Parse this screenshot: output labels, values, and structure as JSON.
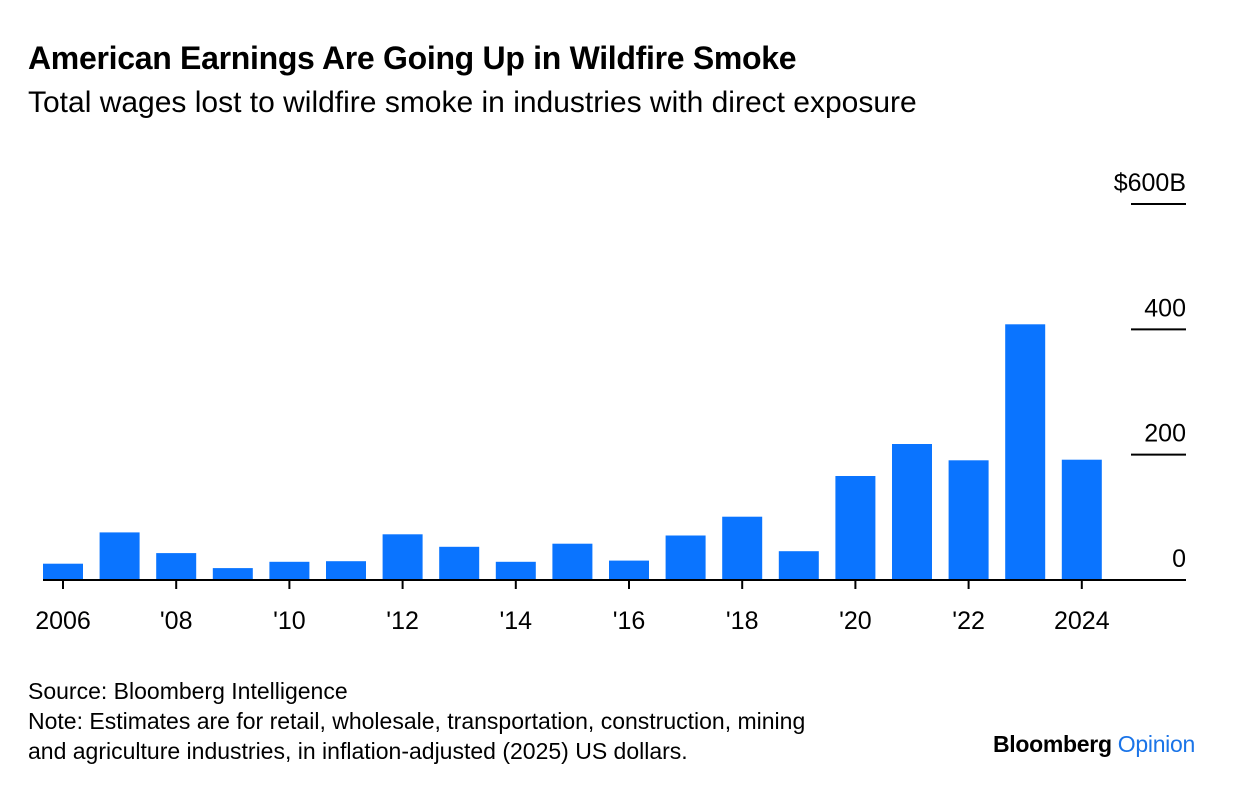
{
  "header": {
    "title": "American Earnings Are Going Up in Wildfire Smoke",
    "subtitle": "Total wages lost to wildfire smoke in industries with direct exposure"
  },
  "footer": {
    "source": "Source: Bloomberg Intelligence",
    "note_line1": "Note: Estimates are for retail, wholesale, transportation, construction, mining",
    "note_line2": "and agriculture industries, in inflation-adjusted (2025) US dollars."
  },
  "brand": {
    "name": "Bloomberg",
    "section": "Opinion"
  },
  "colors": {
    "bar": "#0a74ff",
    "brand_accent": "#1a74e8"
  },
  "chart_data": {
    "type": "bar",
    "categories": [
      "2006",
      "2007",
      "2008",
      "2009",
      "2010",
      "2011",
      "2012",
      "2013",
      "2014",
      "2015",
      "2016",
      "2017",
      "2018",
      "2019",
      "2020",
      "2021",
      "2022",
      "2023",
      "2024"
    ],
    "values": [
      26,
      76,
      43,
      19,
      29,
      30,
      73,
      53,
      29,
      58,
      31,
      71,
      101,
      46,
      166,
      217,
      191,
      408,
      192
    ],
    "x_tick_labels": [
      {
        "year": "2006",
        "label": "2006"
      },
      {
        "year": "2008",
        "label": "'08"
      },
      {
        "year": "2010",
        "label": "'10"
      },
      {
        "year": "2012",
        "label": "'12"
      },
      {
        "year": "2014",
        "label": "'14"
      },
      {
        "year": "2016",
        "label": "'16"
      },
      {
        "year": "2018",
        "label": "'18"
      },
      {
        "year": "2020",
        "label": "'20"
      },
      {
        "year": "2022",
        "label": "'22"
      },
      {
        "year": "2024",
        "label": "2024"
      }
    ],
    "y_ticks": [
      {
        "value": 0,
        "label": "0"
      },
      {
        "value": 200,
        "label": "200"
      },
      {
        "value": 400,
        "label": "400"
      },
      {
        "value": 600,
        "label": "$600B"
      }
    ],
    "ylim": [
      0,
      600
    ],
    "y_axis_position": "right",
    "grid": false,
    "legend": "none"
  }
}
